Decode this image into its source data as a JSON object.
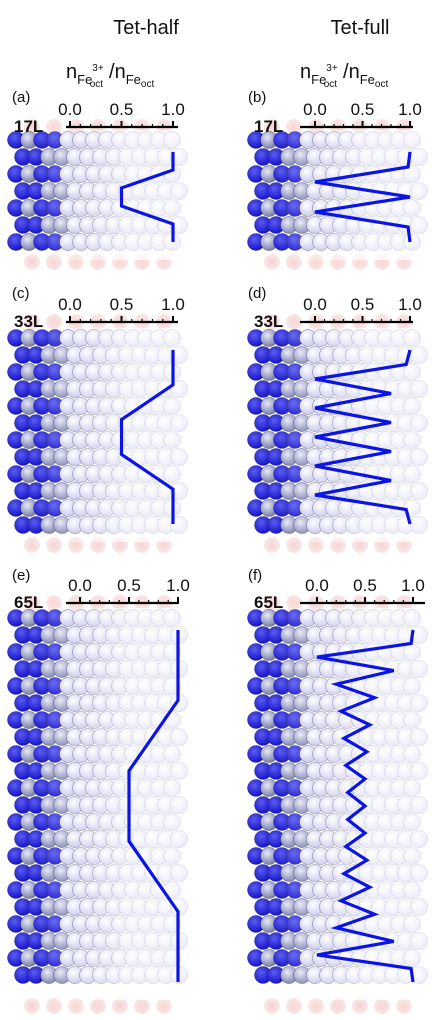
{
  "figure": {
    "columns": [
      "Tet-half",
      "Tet-full"
    ],
    "ratio": {
      "base": "n",
      "num_sub": "Fe",
      "num_sup": "3+",
      "num_subsub": "oct",
      "den_sub": "Fe",
      "den_subsub": "oct"
    }
  },
  "colors": {
    "line": "#0a14e6",
    "atom_dark": "#1a1ae0",
    "atom_mid": "#8c8cf0",
    "atom_light": "#dcdcf8",
    "atom_grey": "#9aa0c8",
    "surface_red": "#f0a0a0"
  },
  "chart_data": [
    {
      "id": "a",
      "panel_label": "(a)",
      "layer_label": "17L",
      "type": "line",
      "xlim": [
        0,
        1
      ],
      "ticks": [
        "0.0",
        "0.5",
        "1.0"
      ],
      "x": [
        1.0,
        1.0,
        0.5,
        0.5,
        1.0,
        1.0
      ],
      "y": [
        0,
        1,
        2,
        3,
        4,
        5
      ]
    },
    {
      "id": "b",
      "panel_label": "(b)",
      "layer_label": "17L",
      "type": "line",
      "xlim": [
        0,
        1
      ],
      "ticks": [
        "0.0",
        "0.5",
        "1.0"
      ],
      "x": [
        1.0,
        0.98,
        0.0,
        1.0,
        0.0,
        0.98,
        1.0
      ],
      "y": [
        0,
        1,
        2,
        3,
        4,
        5,
        6
      ]
    },
    {
      "id": "c",
      "panel_label": "(c)",
      "layer_label": "33L",
      "type": "line",
      "xlim": [
        0,
        1
      ],
      "ticks": [
        "0.0",
        "0.5",
        "1.0"
      ],
      "x": [
        1.0,
        1.0,
        0.5,
        0.5,
        1.0,
        1.0
      ],
      "y": [
        0,
        1,
        2,
        3,
        4,
        5
      ]
    },
    {
      "id": "d",
      "panel_label": "(d)",
      "layer_label": "33L",
      "type": "line",
      "xlim": [
        0,
        1
      ],
      "ticks": [
        "0.0",
        "0.5",
        "1.0"
      ],
      "x": [
        1.0,
        0.96,
        0.0,
        0.8,
        0.0,
        0.8,
        0.0,
        0.8,
        0.0,
        0.8,
        0.0,
        0.96,
        1.0
      ],
      "y": [
        0,
        1,
        2,
        3,
        4,
        5,
        6,
        7,
        8,
        9,
        10,
        11,
        12
      ]
    },
    {
      "id": "e",
      "panel_label": "(e)",
      "layer_label": "65L",
      "type": "line",
      "xlim": [
        0,
        1
      ],
      "ticks": [
        "0.0",
        "0.5",
        "1.0"
      ],
      "x": [
        1.0,
        1.0,
        0.5,
        0.5,
        1.0,
        1.0
      ],
      "y": [
        0,
        1,
        2,
        3,
        4,
        5
      ]
    },
    {
      "id": "f",
      "panel_label": "(f)",
      "layer_label": "65L",
      "type": "line",
      "xlim": [
        0,
        1
      ],
      "ticks": [
        "0.0",
        "0.5",
        "1.0"
      ],
      "x": [
        1.0,
        0.98,
        0.0,
        0.8,
        0.2,
        0.6,
        0.25,
        0.55,
        0.28,
        0.52,
        0.3,
        0.5,
        0.32,
        0.5,
        0.32,
        0.5,
        0.3,
        0.52,
        0.28,
        0.55,
        0.25,
        0.6,
        0.2,
        0.8,
        0.0,
        0.98,
        1.0
      ],
      "y": [
        0,
        1,
        2,
        3,
        4,
        5,
        6,
        7,
        8,
        9,
        10,
        11,
        12,
        13,
        14,
        15,
        16,
        17,
        18,
        19,
        20,
        21,
        22,
        23,
        24,
        25,
        26
      ]
    }
  ]
}
